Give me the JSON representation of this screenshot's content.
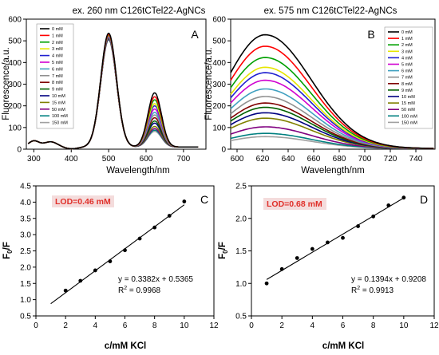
{
  "chart_data": [
    {
      "type": "line",
      "panel_letter": "A",
      "title": "ex. 260 nm C126tCTel22-AgNCs",
      "xlabel": "Wavelength/nm",
      "ylabel": "Fluorescence/a.u.",
      "xlim": [
        280,
        760
      ],
      "ylim": [
        0,
        600
      ],
      "xticks": [
        "300",
        "400",
        "500",
        "600",
        "700"
      ],
      "yticks": [
        "0",
        "100",
        "200",
        "300",
        "400",
        "500",
        "600"
      ],
      "legend_position": "top-left",
      "legend": [
        "0 mM",
        "1 mM",
        "2 mM",
        "3 mM",
        "4 mM",
        "5 mM",
        "6 mM",
        "7 mM",
        "8 mM",
        "9 mM",
        "10 mM",
        "15 mM",
        "50 mM",
        "100 mM",
        "150 mM"
      ],
      "series_colors": [
        "#000000",
        "#ff0000",
        "#00a000",
        "#e6e600",
        "#2020d0",
        "#d000d0",
        "#40a0c0",
        "#909090",
        "#800000",
        "#006000",
        "#000080",
        "#808000",
        "#800080",
        "#008080",
        "#a0a0a0"
      ],
      "peak_values_500nm": [
        525,
        520,
        518,
        515,
        512,
        510,
        508,
        506,
        505,
        503,
        502,
        500,
        498,
        496,
        494
      ],
      "peak_values_625nm": [
        250,
        232,
        218,
        200,
        190,
        175,
        160,
        148,
        135,
        120,
        110,
        95,
        85,
        78,
        72
      ]
    },
    {
      "type": "line",
      "panel_letter": "B",
      "title": "ex. 575 nm C126tCTel22-AgNCs",
      "xlabel": "Wavelength/nm",
      "ylabel": "Fluorescence/a.u.",
      "xlim": [
        595,
        755
      ],
      "ylim": [
        0,
        600
      ],
      "xticks": [
        "600",
        "620",
        "640",
        "660",
        "680",
        "700",
        "720",
        "740"
      ],
      "yticks": [
        "0",
        "100",
        "200",
        "300",
        "400",
        "500",
        "600"
      ],
      "legend_position": "top-right",
      "legend": [
        "0 mM",
        "1 mM",
        "2 mM",
        "3 mM",
        "4 mM",
        "5 mM",
        "6 mM",
        "7 mM",
        "8 mM",
        "9 mM",
        "10 mM",
        "15 mM",
        "50 mM",
        "100 mM",
        "150 mM"
      ],
      "series_colors": [
        "#000000",
        "#ff0000",
        "#00a000",
        "#e6e600",
        "#2020d0",
        "#d000d0",
        "#40a0c0",
        "#909090",
        "#800000",
        "#006000",
        "#000080",
        "#808000",
        "#800080",
        "#008080",
        "#a0a0a0"
      ],
      "peak_values_622nm": [
        525,
        472,
        420,
        375,
        350,
        315,
        275,
        240,
        210,
        190,
        165,
        140,
        100,
        70,
        55
      ]
    },
    {
      "type": "scatter",
      "panel_letter": "C",
      "xlabel": "c/mM KCl",
      "ylabel_main": "F",
      "ylabel_sub": "0",
      "ylabel_tail": "/F",
      "xlim": [
        0,
        12
      ],
      "ylim": [
        0.5,
        4.5
      ],
      "xticks": [
        "0",
        "2",
        "4",
        "6",
        "8",
        "10",
        "12"
      ],
      "yticks": [
        "0.5",
        "1.0",
        "1.5",
        "2.0",
        "2.5",
        "3.0",
        "3.5",
        "4.0",
        "4.5"
      ],
      "x": [
        2,
        3,
        4,
        5,
        6,
        7,
        8,
        9,
        10
      ],
      "y": [
        1.28,
        1.58,
        1.9,
        2.18,
        2.52,
        2.88,
        3.22,
        3.58,
        4.02
      ],
      "fit": {
        "slope": 0.3382,
        "intercept": 0.5365,
        "x_range": [
          1,
          10
        ]
      },
      "lod_label": "LOD=0.46 mM",
      "equation": "y = 0.3382x + 0.5365",
      "r2_main": "R",
      "r2_sup": "2",
      "r2_value": " = 0.9968"
    },
    {
      "type": "scatter",
      "panel_letter": "D",
      "xlabel": "c/mM KCl",
      "ylabel_main": "F",
      "ylabel_sub": "0",
      "ylabel_tail": "/F",
      "xlim": [
        0,
        12
      ],
      "ylim": [
        0.5,
        2.5
      ],
      "xticks": [
        "0",
        "2",
        "4",
        "6",
        "8",
        "10",
        "12"
      ],
      "yticks": [
        "0.5",
        "1.0",
        "1.5",
        "2.0",
        "2.5"
      ],
      "x": [
        1,
        2,
        3,
        4,
        5,
        6,
        7,
        8,
        9,
        10
      ],
      "y": [
        1.0,
        1.22,
        1.39,
        1.53,
        1.63,
        1.7,
        1.88,
        2.03,
        2.2,
        2.32
      ],
      "fit": {
        "slope": 0.1394,
        "intercept": 0.9208,
        "x_range": [
          1,
          10
        ]
      },
      "lod_label": "LOD=0.68 mM",
      "equation": "y = 0.1394x + 0.9208",
      "r2_main": "R",
      "r2_sup": "2",
      "r2_value": " = 0.9913"
    }
  ]
}
